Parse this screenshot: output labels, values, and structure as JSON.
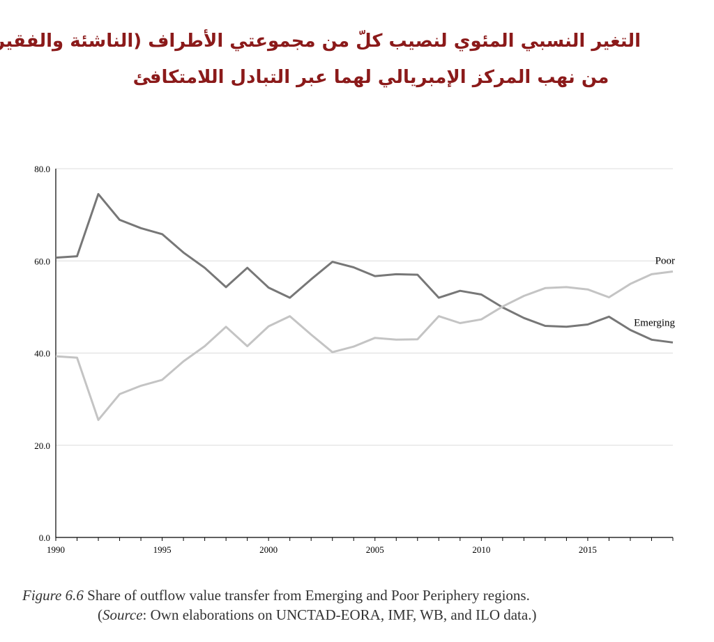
{
  "arabic_title": {
    "line1": "التغير النسبي المئوي لنصيب كلّ من مجموعتي الأطراف (الناشئة والفقيرة)",
    "line2": "من نهب المركز الإمبريالي لهما عبر التبادل اللامتكافئ"
  },
  "caption": {
    "figure_label": "Figure 6.6",
    "text": "Share of outflow value transfer from Emerging and Poor Periphery regions.",
    "source_open": "(",
    "source_label": "Source",
    "source_text": ": Own elaborations on UNCTAD-EORA, IMF, WB, and ILO data.)"
  },
  "chart_data": {
    "type": "line",
    "x": [
      1990,
      1991,
      1992,
      1993,
      1994,
      1995,
      1996,
      1997,
      1998,
      1999,
      2000,
      2001,
      2002,
      2003,
      2004,
      2005,
      2006,
      2007,
      2008,
      2009,
      2010,
      2011,
      2012,
      2013,
      2014,
      2015,
      2016,
      2017,
      2018,
      2019
    ],
    "x_ticks": [
      "1990",
      "1995",
      "2000",
      "2005",
      "2010",
      "2015"
    ],
    "y_ticks": [
      "0.0",
      "20.0",
      "40.0",
      "60.0",
      "80.0"
    ],
    "ylim": [
      0,
      80
    ],
    "xlim": [
      1990,
      2019
    ],
    "grid": "horizontal",
    "series": [
      {
        "name": "Emerging",
        "color": "#777777",
        "values": [
          60.7,
          61.0,
          74.5,
          68.9,
          67.1,
          65.8,
          61.8,
          58.5,
          54.3,
          58.5,
          54.2,
          52.0,
          56.0,
          59.8,
          58.6,
          56.7,
          57.1,
          57.0,
          52.0,
          53.5,
          52.7,
          49.9,
          47.6,
          45.9,
          45.7,
          46.2,
          47.9,
          45.0,
          42.9,
          42.3
        ]
      },
      {
        "name": "Poor",
        "color": "#c4c4c4",
        "values": [
          39.3,
          39.0,
          25.5,
          31.1,
          32.9,
          34.2,
          38.2,
          41.5,
          45.7,
          41.5,
          45.8,
          48.0,
          44.0,
          40.2,
          41.4,
          43.3,
          42.9,
          43.0,
          48.0,
          46.5,
          47.3,
          50.1,
          52.4,
          54.1,
          54.3,
          53.8,
          52.1,
          55.0,
          57.1,
          57.7
        ]
      }
    ]
  }
}
